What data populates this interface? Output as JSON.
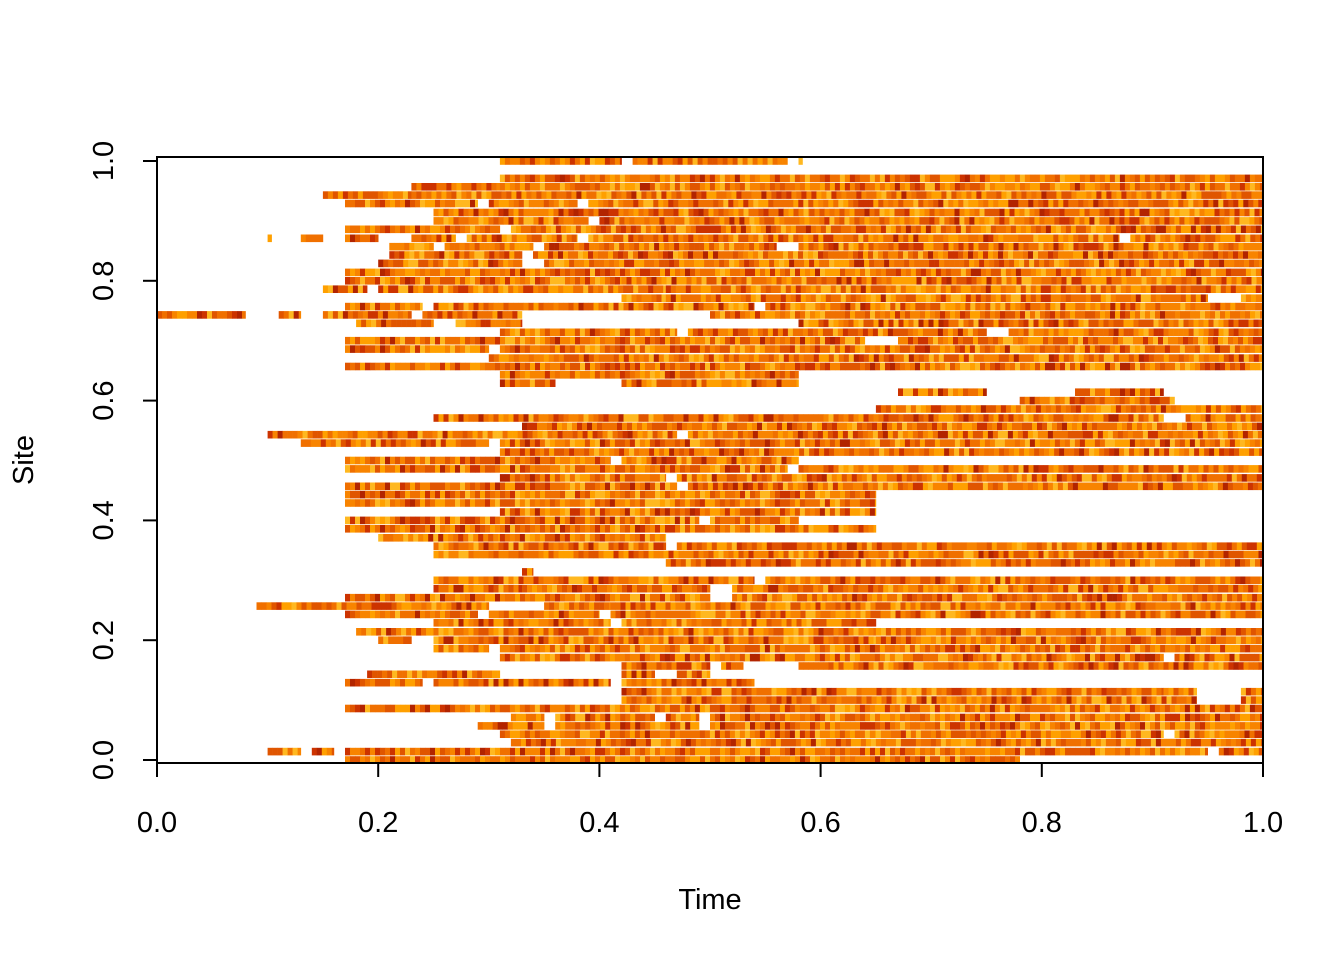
{
  "chart_data": {
    "type": "heatmap",
    "title": "",
    "xlabel": "Time",
    "ylabel": "Site",
    "xlim": [
      0,
      1
    ],
    "ylim": [
      0,
      1
    ],
    "x_ticks": [
      "0.0",
      "0.2",
      "0.4",
      "0.6",
      "0.8",
      "1.0"
    ],
    "y_ticks": [
      "0.0",
      "0.2",
      "0.4",
      "0.6",
      "0.8",
      "1.0"
    ],
    "grid": false,
    "legend": "none",
    "colors": [
      "#b22400",
      "#cc3300",
      "#e05500",
      "#f07000",
      "#f88400",
      "#ffa000",
      "#ffb820"
    ],
    "rows": [
      {
        "y": 1.0,
        "segments": [
          [
            0.31,
            0.42
          ],
          [
            0.43,
            0.57
          ],
          [
            0.58,
            0.58
          ]
        ]
      },
      {
        "y": 0.971,
        "segments": [
          [
            0.31,
            1.0
          ]
        ]
      },
      {
        "y": 0.957,
        "segments": [
          [
            0.23,
            0.31
          ],
          [
            0.31,
            1.0
          ]
        ]
      },
      {
        "y": 0.943,
        "segments": [
          [
            0.15,
            0.23
          ],
          [
            0.23,
            1.0
          ]
        ]
      },
      {
        "y": 0.929,
        "segments": [
          [
            0.17,
            0.29
          ],
          [
            0.3,
            0.38
          ],
          [
            0.39,
            1.0
          ]
        ]
      },
      {
        "y": 0.914,
        "segments": [
          [
            0.25,
            0.59
          ],
          [
            0.59,
            1.0
          ]
        ]
      },
      {
        "y": 0.9,
        "segments": [
          [
            0.25,
            0.39
          ],
          [
            0.4,
            1.0
          ]
        ]
      },
      {
        "y": 0.886,
        "segments": [
          [
            0.17,
            0.31
          ],
          [
            0.32,
            1.0
          ]
        ]
      },
      {
        "y": 0.871,
        "segments": [
          [
            0.1,
            0.1
          ],
          [
            0.13,
            0.15
          ],
          [
            0.17,
            0.2
          ],
          [
            0.23,
            0.27
          ],
          [
            0.28,
            0.38
          ],
          [
            0.39,
            0.87
          ],
          [
            0.88,
            1.0
          ]
        ]
      },
      {
        "y": 0.857,
        "segments": [
          [
            0.21,
            0.25
          ],
          [
            0.26,
            0.34
          ],
          [
            0.35,
            0.56
          ],
          [
            0.58,
            1.0
          ]
        ]
      },
      {
        "y": 0.843,
        "segments": [
          [
            0.21,
            0.33
          ],
          [
            0.34,
            1.0
          ]
        ]
      },
      {
        "y": 0.829,
        "segments": [
          [
            0.2,
            0.33
          ],
          [
            0.35,
            1.0
          ]
        ]
      },
      {
        "y": 0.814,
        "segments": [
          [
            0.17,
            0.65
          ],
          [
            0.65,
            1.0
          ]
        ]
      },
      {
        "y": 0.8,
        "segments": [
          [
            0.17,
            0.42
          ],
          [
            0.42,
            1.0
          ]
        ]
      },
      {
        "y": 0.786,
        "segments": [
          [
            0.15,
            0.19
          ],
          [
            0.2,
            0.46
          ],
          [
            0.46,
            1.0
          ]
        ]
      },
      {
        "y": 0.771,
        "segments": [
          [
            0.42,
            0.46
          ],
          [
            0.46,
            0.95
          ],
          [
            0.98,
            1.0
          ]
        ]
      },
      {
        "y": 0.757,
        "segments": [
          [
            0.17,
            0.24
          ],
          [
            0.25,
            0.54
          ],
          [
            0.55,
            1.0
          ]
        ]
      },
      {
        "y": 0.743,
        "segments": [
          [
            0.0,
            0.08
          ],
          [
            0.11,
            0.13
          ],
          [
            0.15,
            0.23
          ],
          [
            0.24,
            0.33
          ],
          [
            0.5,
            1.0
          ]
        ]
      },
      {
        "y": 0.729,
        "segments": [
          [
            0.18,
            0.25
          ],
          [
            0.27,
            0.33
          ],
          [
            0.58,
            1.0
          ]
        ]
      },
      {
        "y": 0.714,
        "segments": [
          [
            0.31,
            0.47
          ],
          [
            0.48,
            0.75
          ],
          [
            0.77,
            1.0
          ]
        ]
      },
      {
        "y": 0.7,
        "segments": [
          [
            0.17,
            0.64
          ],
          [
            0.67,
            1.0
          ]
        ]
      },
      {
        "y": 0.686,
        "segments": [
          [
            0.17,
            0.3
          ],
          [
            0.31,
            1.0
          ]
        ]
      },
      {
        "y": 0.671,
        "segments": [
          [
            0.3,
            1.0
          ]
        ]
      },
      {
        "y": 0.657,
        "segments": [
          [
            0.17,
            1.0
          ]
        ]
      },
      {
        "y": 0.643,
        "segments": [
          [
            0.31,
            0.58
          ]
        ]
      },
      {
        "y": 0.629,
        "segments": [
          [
            0.31,
            0.36
          ],
          [
            0.42,
            0.58
          ]
        ]
      },
      {
        "y": 0.614,
        "segments": [
          [
            0.67,
            0.75
          ],
          [
            0.83,
            0.91
          ]
        ]
      },
      {
        "y": 0.6,
        "segments": [
          [
            0.78,
            0.92
          ]
        ]
      },
      {
        "y": 0.586,
        "segments": [
          [
            0.65,
            1.0
          ]
        ]
      },
      {
        "y": 0.571,
        "segments": [
          [
            0.25,
            0.91
          ],
          [
            0.93,
            1.0
          ]
        ]
      },
      {
        "y": 0.557,
        "segments": [
          [
            0.33,
            1.0
          ]
        ]
      },
      {
        "y": 0.543,
        "segments": [
          [
            0.1,
            0.47
          ],
          [
            0.48,
            1.0
          ]
        ]
      },
      {
        "y": 0.529,
        "segments": [
          [
            0.13,
            0.3
          ],
          [
            0.31,
            1.0
          ]
        ]
      },
      {
        "y": 0.514,
        "segments": [
          [
            0.31,
            0.35
          ],
          [
            0.35,
            1.0
          ]
        ]
      },
      {
        "y": 0.5,
        "segments": [
          [
            0.17,
            0.41
          ],
          [
            0.42,
            0.58
          ]
        ]
      },
      {
        "y": 0.486,
        "segments": [
          [
            0.17,
            0.57
          ],
          [
            0.58,
            1.0
          ]
        ]
      },
      {
        "y": 0.471,
        "segments": [
          [
            0.31,
            0.46
          ],
          [
            0.47,
            1.0
          ]
        ]
      },
      {
        "y": 0.457,
        "segments": [
          [
            0.17,
            0.47
          ],
          [
            0.48,
            1.0
          ]
        ]
      },
      {
        "y": 0.443,
        "segments": [
          [
            0.17,
            0.65
          ]
        ]
      },
      {
        "y": 0.429,
        "segments": [
          [
            0.17,
            0.31
          ],
          [
            0.31,
            0.65
          ]
        ]
      },
      {
        "y": 0.414,
        "segments": [
          [
            0.31,
            0.65
          ]
        ]
      },
      {
        "y": 0.4,
        "segments": [
          [
            0.17,
            0.31
          ],
          [
            0.31,
            0.49
          ],
          [
            0.5,
            0.58
          ]
        ]
      },
      {
        "y": 0.386,
        "segments": [
          [
            0.17,
            0.58
          ],
          [
            0.58,
            0.65
          ]
        ]
      },
      {
        "y": 0.371,
        "segments": [
          [
            0.2,
            0.31
          ],
          [
            0.31,
            0.46
          ]
        ]
      },
      {
        "y": 0.357,
        "segments": [
          [
            0.25,
            0.46
          ],
          [
            0.47,
            1.0
          ]
        ]
      },
      {
        "y": 0.343,
        "segments": [
          [
            0.25,
            1.0
          ]
        ]
      },
      {
        "y": 0.329,
        "segments": [
          [
            0.46,
            0.83
          ],
          [
            0.83,
            1.0
          ]
        ]
      },
      {
        "y": 0.314,
        "segments": [
          [
            0.33,
            0.34
          ]
        ]
      },
      {
        "y": 0.3,
        "segments": [
          [
            0.25,
            0.54
          ],
          [
            0.55,
            1.0
          ]
        ]
      },
      {
        "y": 0.286,
        "segments": [
          [
            0.25,
            0.33
          ],
          [
            0.33,
            0.5
          ],
          [
            0.52,
            0.53
          ],
          [
            0.53,
            1.0
          ]
        ]
      },
      {
        "y": 0.271,
        "segments": [
          [
            0.17,
            0.5
          ],
          [
            0.52,
            1.0
          ]
        ]
      },
      {
        "y": 0.257,
        "segments": [
          [
            0.09,
            0.23
          ],
          [
            0.23,
            0.3
          ],
          [
            0.35,
            0.41
          ],
          [
            0.41,
            1.0
          ]
        ]
      },
      {
        "y": 0.243,
        "segments": [
          [
            0.17,
            0.29
          ],
          [
            0.3,
            0.4
          ],
          [
            0.41,
            1.0
          ]
        ]
      },
      {
        "y": 0.229,
        "segments": [
          [
            0.25,
            0.41
          ],
          [
            0.42,
            0.65
          ]
        ]
      },
      {
        "y": 0.214,
        "segments": [
          [
            0.18,
            0.25
          ],
          [
            0.25,
            0.65
          ],
          [
            0.65,
            1.0
          ]
        ]
      },
      {
        "y": 0.2,
        "segments": [
          [
            0.2,
            0.23
          ],
          [
            0.25,
            0.65
          ],
          [
            0.65,
            1.0
          ]
        ]
      },
      {
        "y": 0.186,
        "segments": [
          [
            0.25,
            0.3
          ],
          [
            0.31,
            0.69
          ],
          [
            0.69,
            1.0
          ]
        ]
      },
      {
        "y": 0.171,
        "segments": [
          [
            0.31,
            0.67
          ],
          [
            0.67,
            0.75
          ],
          [
            0.75,
            0.83
          ],
          [
            0.83,
            0.91
          ],
          [
            0.92,
            1.0
          ]
        ]
      },
      {
        "y": 0.157,
        "segments": [
          [
            0.42,
            0.5
          ],
          [
            0.51,
            0.53
          ],
          [
            0.58,
            1.0
          ]
        ]
      },
      {
        "y": 0.143,
        "segments": [
          [
            0.19,
            0.31
          ],
          [
            0.42,
            0.45
          ],
          [
            0.47,
            0.5
          ]
        ]
      },
      {
        "y": 0.129,
        "segments": [
          [
            0.17,
            0.24
          ],
          [
            0.25,
            0.41
          ],
          [
            0.42,
            0.54
          ]
        ]
      },
      {
        "y": 0.114,
        "segments": [
          [
            0.42,
            0.75
          ],
          [
            0.75,
            0.91
          ],
          [
            0.91,
            0.94
          ],
          [
            0.98,
            1.0
          ]
        ]
      },
      {
        "y": 0.1,
        "segments": [
          [
            0.42,
            0.94
          ],
          [
            0.98,
            1.0
          ]
        ]
      },
      {
        "y": 0.086,
        "segments": [
          [
            0.17,
            0.31
          ],
          [
            0.31,
            1.0
          ]
        ]
      },
      {
        "y": 0.071,
        "segments": [
          [
            0.32,
            0.35
          ],
          [
            0.36,
            0.45
          ],
          [
            0.46,
            0.49
          ],
          [
            0.5,
            1.0
          ]
        ]
      },
      {
        "y": 0.057,
        "segments": [
          [
            0.29,
            0.35
          ],
          [
            0.36,
            0.49
          ],
          [
            0.5,
            1.0
          ]
        ]
      },
      {
        "y": 0.043,
        "segments": [
          [
            0.31,
            0.65
          ],
          [
            0.65,
            0.91
          ],
          [
            0.92,
            1.0
          ]
        ]
      },
      {
        "y": 0.029,
        "segments": [
          [
            0.32,
            0.65
          ],
          [
            0.65,
            1.0
          ]
        ]
      },
      {
        "y": 0.014,
        "segments": [
          [
            0.1,
            0.13
          ],
          [
            0.14,
            0.16
          ],
          [
            0.17,
            0.95
          ],
          [
            0.96,
            1.0
          ]
        ]
      },
      {
        "y": 0.0,
        "segments": [
          [
            0.17,
            0.78
          ]
        ]
      }
    ]
  }
}
